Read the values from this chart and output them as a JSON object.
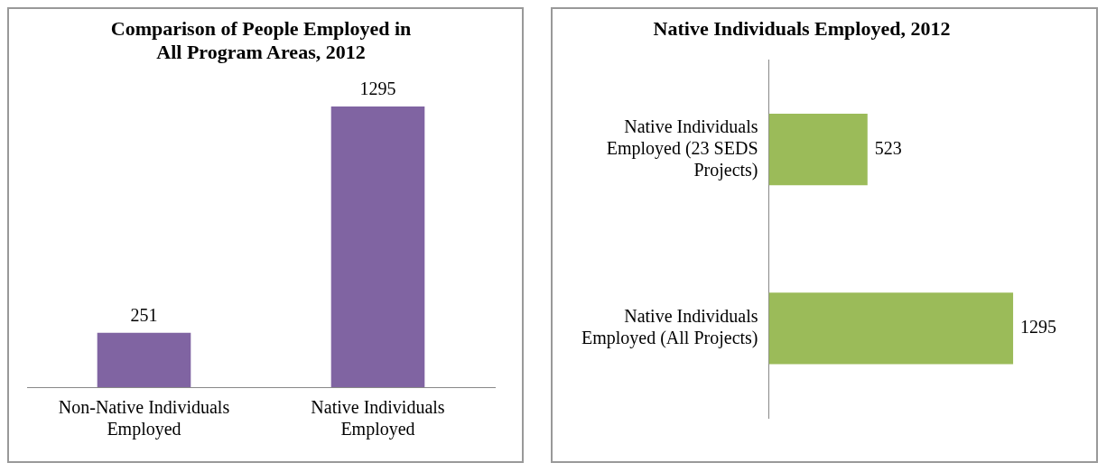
{
  "chart_data": [
    {
      "type": "bar",
      "title": "Comparison of People Employed in All Program Areas, 2012",
      "categories": [
        "Non-Native Individuals Employed",
        "Native Individuals Employed"
      ],
      "values": [
        251,
        1295
      ],
      "color": "#8064a2",
      "data_labels": true,
      "grid": false,
      "legend": false,
      "tick_labels": "x"
    },
    {
      "type": "bar",
      "orientation": "horizontal",
      "title": "Native Individuals Employed, 2012",
      "categories": [
        "Native Individuals Employed (23 SEDS Projects)",
        "Native Individuals Employed (All Projects)"
      ],
      "values": [
        523,
        1295
      ],
      "color": "#9bbb59",
      "data_labels": true,
      "grid": false,
      "legend": false,
      "tick_labels": "y"
    }
  ]
}
